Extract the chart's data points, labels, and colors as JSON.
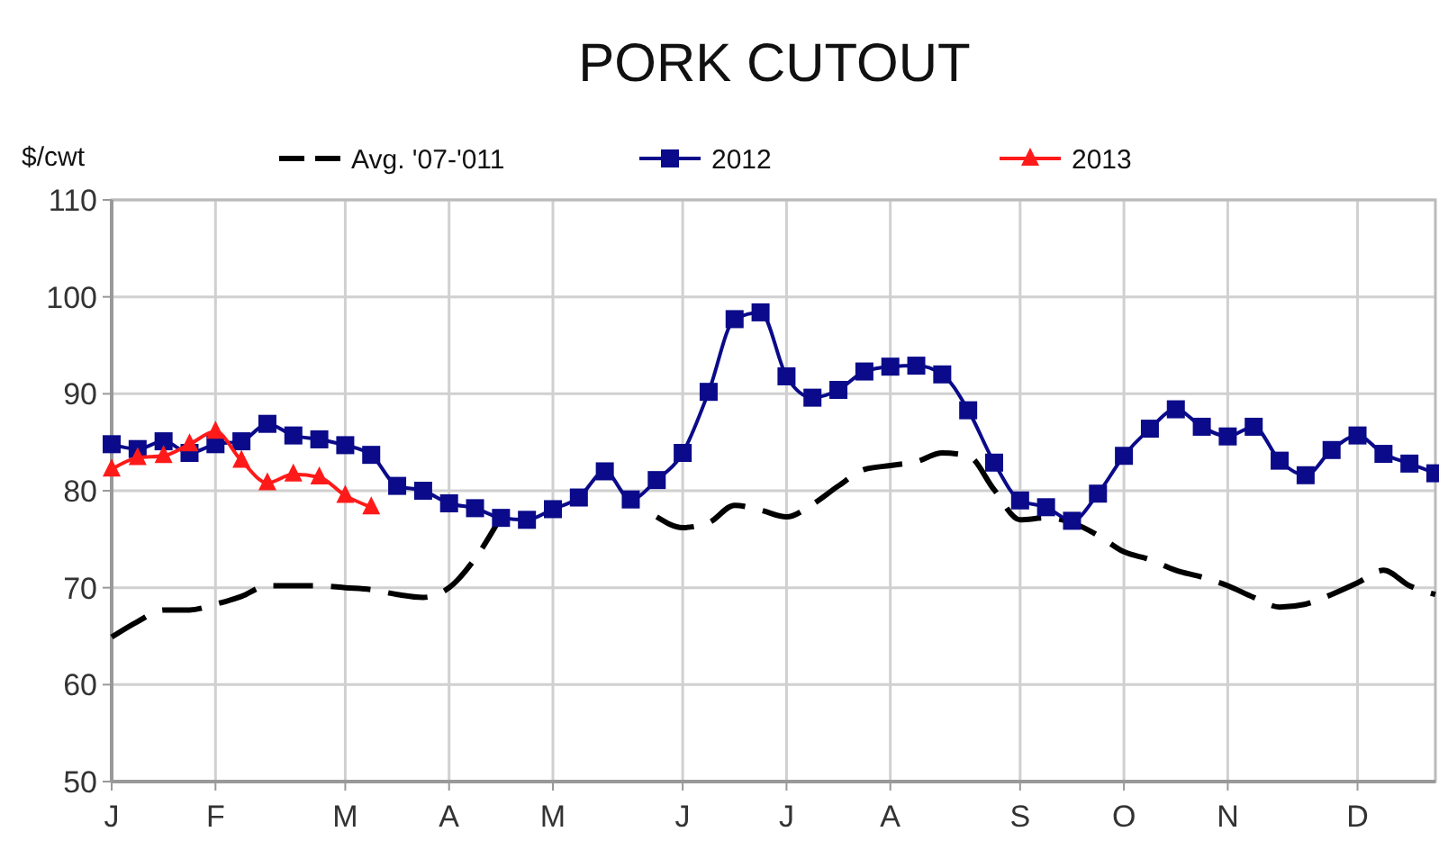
{
  "chart_data": {
    "type": "line",
    "title": "PORK CUTOUT",
    "ylabel": "$/cwt",
    "categories": [
      "J",
      null,
      null,
      null,
      "F",
      null,
      null,
      null,
      null,
      "M",
      null,
      null,
      null,
      "A",
      null,
      null,
      null,
      "M",
      null,
      null,
      null,
      null,
      "J",
      null,
      null,
      null,
      "J",
      null,
      null,
      null,
      "A",
      null,
      null,
      null,
      null,
      "S",
      null,
      null,
      null,
      "O",
      null,
      null,
      null,
      "N",
      null,
      null,
      null,
      null,
      "D",
      null,
      null,
      null
    ],
    "series": [
      {
        "name": "Avg. '07-'011",
        "color": "#000000",
        "line_style": "dashed",
        "marker": "none",
        "values": [
          64.9,
          66.5,
          67.7,
          67.7,
          68.3,
          69.1,
          70.2,
          70.2,
          70.2,
          70.0,
          69.8,
          69.3,
          69.0,
          70.0,
          73.0,
          77.3,
          null,
          null,
          null,
          null,
          null,
          77.3,
          76.2,
          76.7,
          78.5,
          78.0,
          77.3,
          78.6,
          80.5,
          82.2,
          82.6,
          83.0,
          83.9,
          83.6,
          80.1,
          77.0,
          77.2,
          76.7,
          75.4,
          73.7,
          72.9,
          71.8,
          71.1,
          70.2,
          69.0,
          68.0,
          68.3,
          69.3,
          70.5,
          71.8,
          70.2,
          69.3
        ]
      },
      {
        "name": "2012",
        "color": "#0a0a8a",
        "line_style": "solid",
        "marker": "square",
        "values": [
          84.8,
          84.3,
          85.1,
          83.9,
          84.8,
          85.1,
          86.9,
          85.7,
          85.3,
          84.7,
          83.7,
          80.5,
          80.0,
          78.7,
          78.2,
          77.2,
          77.0,
          78.1,
          79.3,
          82.0,
          79.1,
          81.1,
          83.9,
          90.2,
          97.7,
          98.4,
          91.8,
          89.6,
          90.4,
          92.3,
          92.8,
          92.9,
          92.0,
          88.3,
          82.9,
          79.0,
          78.3,
          76.9,
          79.7,
          83.6,
          86.4,
          88.4,
          86.6,
          85.6,
          86.6,
          83.1,
          81.6,
          84.2,
          85.7,
          83.8,
          82.8,
          81.8
        ]
      },
      {
        "name": "2013",
        "color": "#ff1a1a",
        "line_style": "solid",
        "marker": "triangle",
        "values": [
          82.2,
          83.4,
          83.6,
          84.8,
          86.1,
          83.1,
          80.8,
          81.7,
          81.4,
          79.5,
          78.3,
          null,
          null,
          null,
          null,
          null,
          null,
          null,
          null,
          null,
          null,
          null,
          null,
          null,
          null,
          null,
          null,
          null,
          null,
          null,
          null,
          null,
          null,
          null,
          null,
          null,
          null,
          null,
          null,
          null,
          null,
          null,
          null,
          null,
          null,
          null,
          null,
          null,
          null,
          null,
          null,
          null
        ]
      }
    ],
    "ylim": [
      50,
      110
    ],
    "yticks": [
      50,
      60,
      70,
      80,
      90,
      100,
      110
    ],
    "grid": true,
    "legend": "top"
  }
}
